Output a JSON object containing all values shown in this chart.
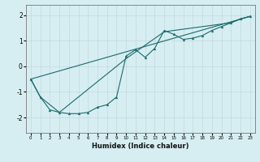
{
  "xlabel": "Humidex (Indice chaleur)",
  "ylabel": "",
  "bg_color": "#d6eef2",
  "grid_color": "#c4d8dc",
  "line_color": "#1a6b6b",
  "xlim": [
    -0.5,
    23.5
  ],
  "ylim": [
    -2.6,
    2.4
  ],
  "xticks": [
    0,
    1,
    2,
    3,
    4,
    5,
    6,
    7,
    8,
    9,
    10,
    11,
    12,
    13,
    14,
    15,
    16,
    17,
    18,
    19,
    20,
    21,
    22,
    23
  ],
  "yticks": [
    -2,
    -1,
    0,
    1,
    2
  ],
  "curve1_x": [
    0,
    1,
    2,
    3,
    4,
    5,
    6,
    7,
    8,
    9,
    10,
    11,
    12,
    13,
    14,
    15,
    16,
    17,
    18,
    19,
    20,
    21,
    22,
    23
  ],
  "curve1_y": [
    -0.5,
    -1.2,
    -1.7,
    -1.8,
    -1.85,
    -1.85,
    -1.8,
    -1.6,
    -1.5,
    -1.2,
    0.4,
    0.65,
    0.35,
    0.7,
    1.4,
    1.25,
    1.05,
    1.1,
    1.2,
    1.4,
    1.55,
    1.7,
    1.85,
    1.95
  ],
  "curve2_x": [
    0,
    1,
    3,
    10,
    14,
    21,
    22,
    23
  ],
  "curve2_y": [
    -0.5,
    -1.2,
    -1.8,
    0.3,
    1.35,
    1.7,
    1.85,
    1.95
  ],
  "curve3_x": [
    0,
    23
  ],
  "curve3_y": [
    -0.5,
    1.95
  ]
}
